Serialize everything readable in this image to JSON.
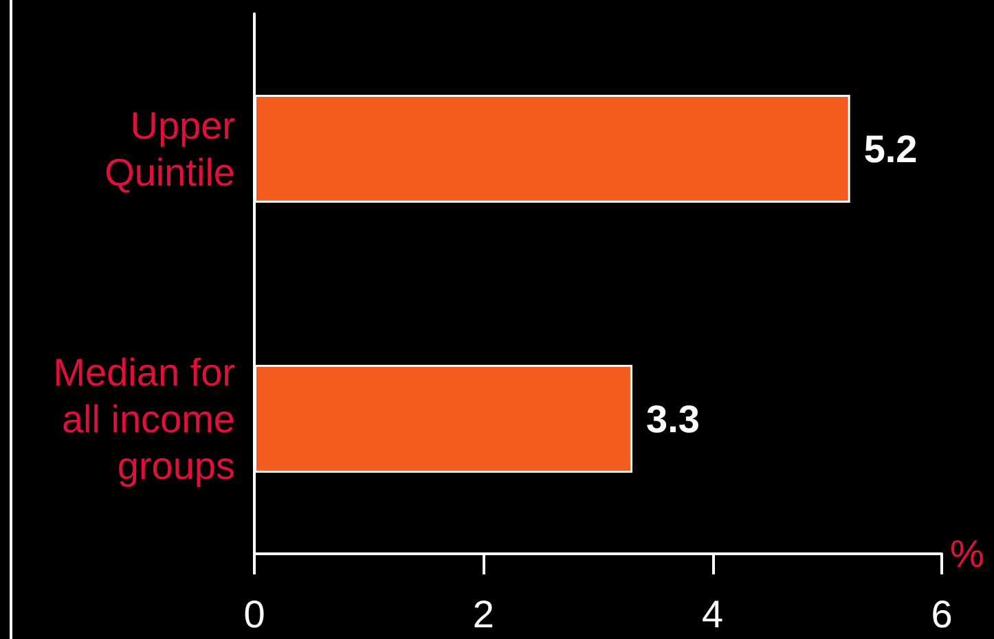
{
  "chart_data": {
    "type": "bar",
    "orientation": "horizontal",
    "categories": [
      "Upper\nQuintile",
      "Median for\nall income\ngroups"
    ],
    "values": [
      5.2,
      3.3
    ],
    "color": "#f25c1f",
    "xlim": [
      0,
      6
    ],
    "xticks": [
      0,
      2,
      4,
      6
    ],
    "xlabel": "%",
    "data_labels": true
  }
}
